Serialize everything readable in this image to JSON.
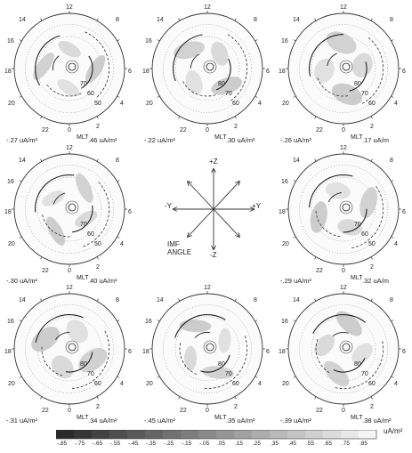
{
  "panels": [
    {
      "id": "p1",
      "min": "-.27 uA/m²",
      "max": ".46 uA/m²",
      "lat_labels": [
        "70",
        "60",
        "50"
      ]
    },
    {
      "id": "p2",
      "min": "-.22 uA/m²",
      "max": ".30 uA/m²",
      "lat_labels": [
        "80",
        "70",
        "60"
      ]
    },
    {
      "id": "p3",
      "min": "-.26 uA/m²",
      "max": ".17 uA/m",
      "lat_labels": [
        "80",
        "70",
        "60"
      ]
    },
    {
      "id": "p4",
      "min": "-.30 uA/m²",
      "max": ".40 uA/m²",
      "lat_labels": [
        "70",
        "60",
        "50"
      ]
    },
    {
      "id": "p5",
      "min": "-.29 uA/m²",
      "max": ".32 uA/m",
      "lat_labels": [
        "70",
        "60",
        "50"
      ]
    },
    {
      "id": "p6",
      "min": "-.31 uA/m²",
      "max": ".34 uA/m²",
      "lat_labels": [
        "80",
        "70",
        "60"
      ]
    },
    {
      "id": "p7",
      "min": "-.45 uA/m²",
      "max": ".35 uA/m²",
      "lat_labels": [
        "80",
        "70",
        "60"
      ]
    },
    {
      "id": "p8",
      "min": "-.39 uA/m²",
      "max": ".38 uA/m²",
      "lat_labels": [
        "80",
        "70",
        "60"
      ]
    }
  ],
  "clock_labels": {
    "top": "12",
    "left_upper": "14",
    "left_mid": "16",
    "left_low": "18",
    "left_bottom": "20",
    "bottom_left": "22",
    "bottom": "0",
    "right_upper": "8",
    "right_mid": "6",
    "right_low": "4",
    "bottom_right": "2"
  },
  "mlt_label": "MLT",
  "imf": {
    "plus_z": "+Z",
    "minus_z": "-Z",
    "plus_y": "+Y",
    "minus_y": "-Y",
    "label_line1": "IMF",
    "label_line2": "ANGLE"
  },
  "colorbar": {
    "ticks": [
      "-.85",
      "-.75",
      "-.65",
      "-.55",
      "-.45",
      "-.35",
      "-.25",
      "-.15",
      "-.05",
      ".05",
      ".15",
      ".25",
      ".35",
      ".45",
      ".55",
      ".65",
      ".75",
      ".85"
    ],
    "unit": "uA/m²",
    "color_low": "#2a2a2a",
    "color_high": "#f4f4f4"
  }
}
